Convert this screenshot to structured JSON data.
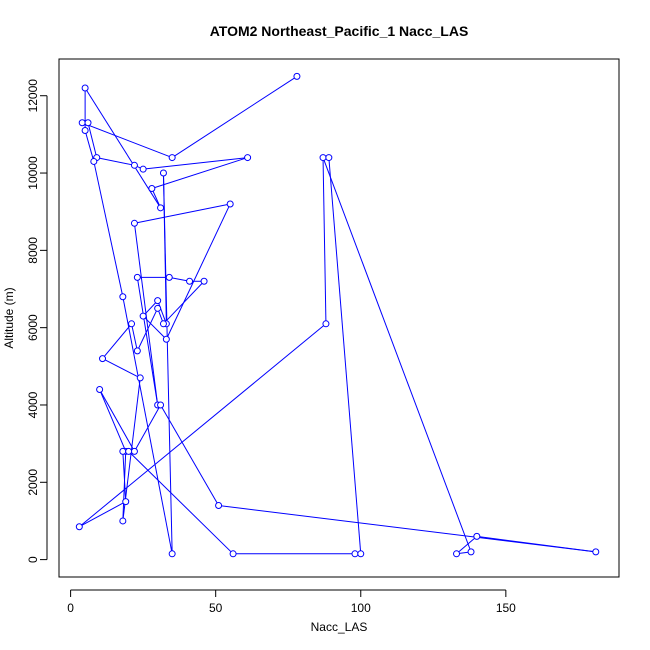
{
  "chart_data": {
    "type": "line",
    "title": "ATOM2 Northeast_Pacific_1 Nacc_LAS",
    "xlabel": "Nacc_LAS",
    "ylabel": "Altitude (m)",
    "xlim": [
      -4,
      189
    ],
    "ylim": [
      -450,
      12950
    ],
    "xticks": [
      0,
      50,
      100,
      150
    ],
    "yticks": [
      0,
      2000,
      4000,
      6000,
      8000,
      10000,
      12000
    ],
    "series_color": "#0000ff",
    "marker": "open-circle",
    "grid": false,
    "legend": "none",
    "x": [
      78,
      35,
      4,
      6,
      9,
      22,
      25,
      61,
      28,
      31,
      5,
      5,
      8,
      18,
      35,
      32,
      33,
      30,
      25,
      33,
      55,
      22,
      30,
      23,
      34,
      41,
      46,
      32,
      30,
      23,
      21,
      11,
      24,
      18,
      19,
      10,
      22,
      31,
      51,
      181,
      140,
      133,
      138,
      87,
      88,
      3,
      19,
      18,
      20,
      56,
      98,
      100,
      89
    ],
    "y": [
      12500,
      10400,
      11300,
      11300,
      10400,
      10200,
      10100,
      10400,
      9600,
      9100,
      12200,
      11100,
      10300,
      6800,
      150,
      10000,
      6100,
      6700,
      6300,
      5700,
      9200,
      8700,
      4000,
      7300,
      7300,
      7200,
      7200,
      6100,
      6500,
      5400,
      6100,
      5200,
      4700,
      1000,
      2800,
      4400,
      2800,
      4000,
      1400,
      200,
      600,
      150,
      200,
      10400,
      6100,
      850,
      1500,
      2800,
      2800,
      150,
      150,
      150,
      10400
    ]
  }
}
